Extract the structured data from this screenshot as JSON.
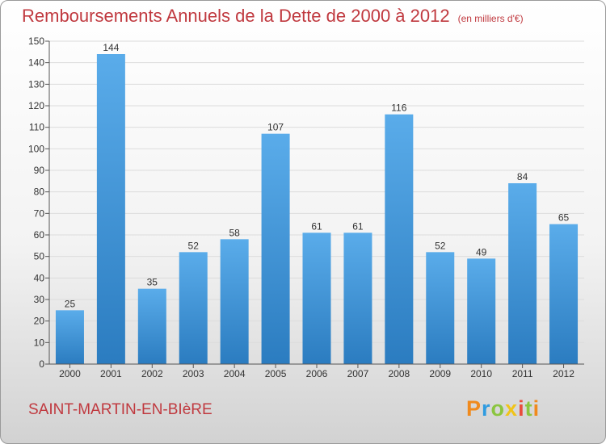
{
  "header": {
    "title": "Remboursements Annuels de la Dette de 2000 à 2012",
    "unit": "(en milliers d'€)"
  },
  "footer": {
    "commune": "SAINT-MARTIN-EN-BIèRE",
    "brand": "Proxiti"
  },
  "colors": {
    "title": "#c0393f",
    "bar_light": "#5aacea",
    "bar_dark": "#2b7cc0",
    "grid": "#dcdcdc"
  },
  "chart_data": {
    "type": "bar",
    "title": "Remboursements Annuels de la Dette de 2000 à 2012",
    "xlabel": "",
    "ylabel": "",
    "categories": [
      "2000",
      "2001",
      "2002",
      "2003",
      "2004",
      "2005",
      "2006",
      "2007",
      "2008",
      "2009",
      "2010",
      "2011",
      "2012"
    ],
    "values": [
      25,
      144,
      35,
      52,
      58,
      107,
      61,
      61,
      116,
      52,
      49,
      84,
      65
    ],
    "ylim": [
      0,
      150
    ],
    "yticks": [
      0,
      10,
      20,
      30,
      40,
      50,
      60,
      70,
      80,
      90,
      100,
      110,
      120,
      130,
      140,
      150
    ],
    "grid": true,
    "data_labels": true
  }
}
